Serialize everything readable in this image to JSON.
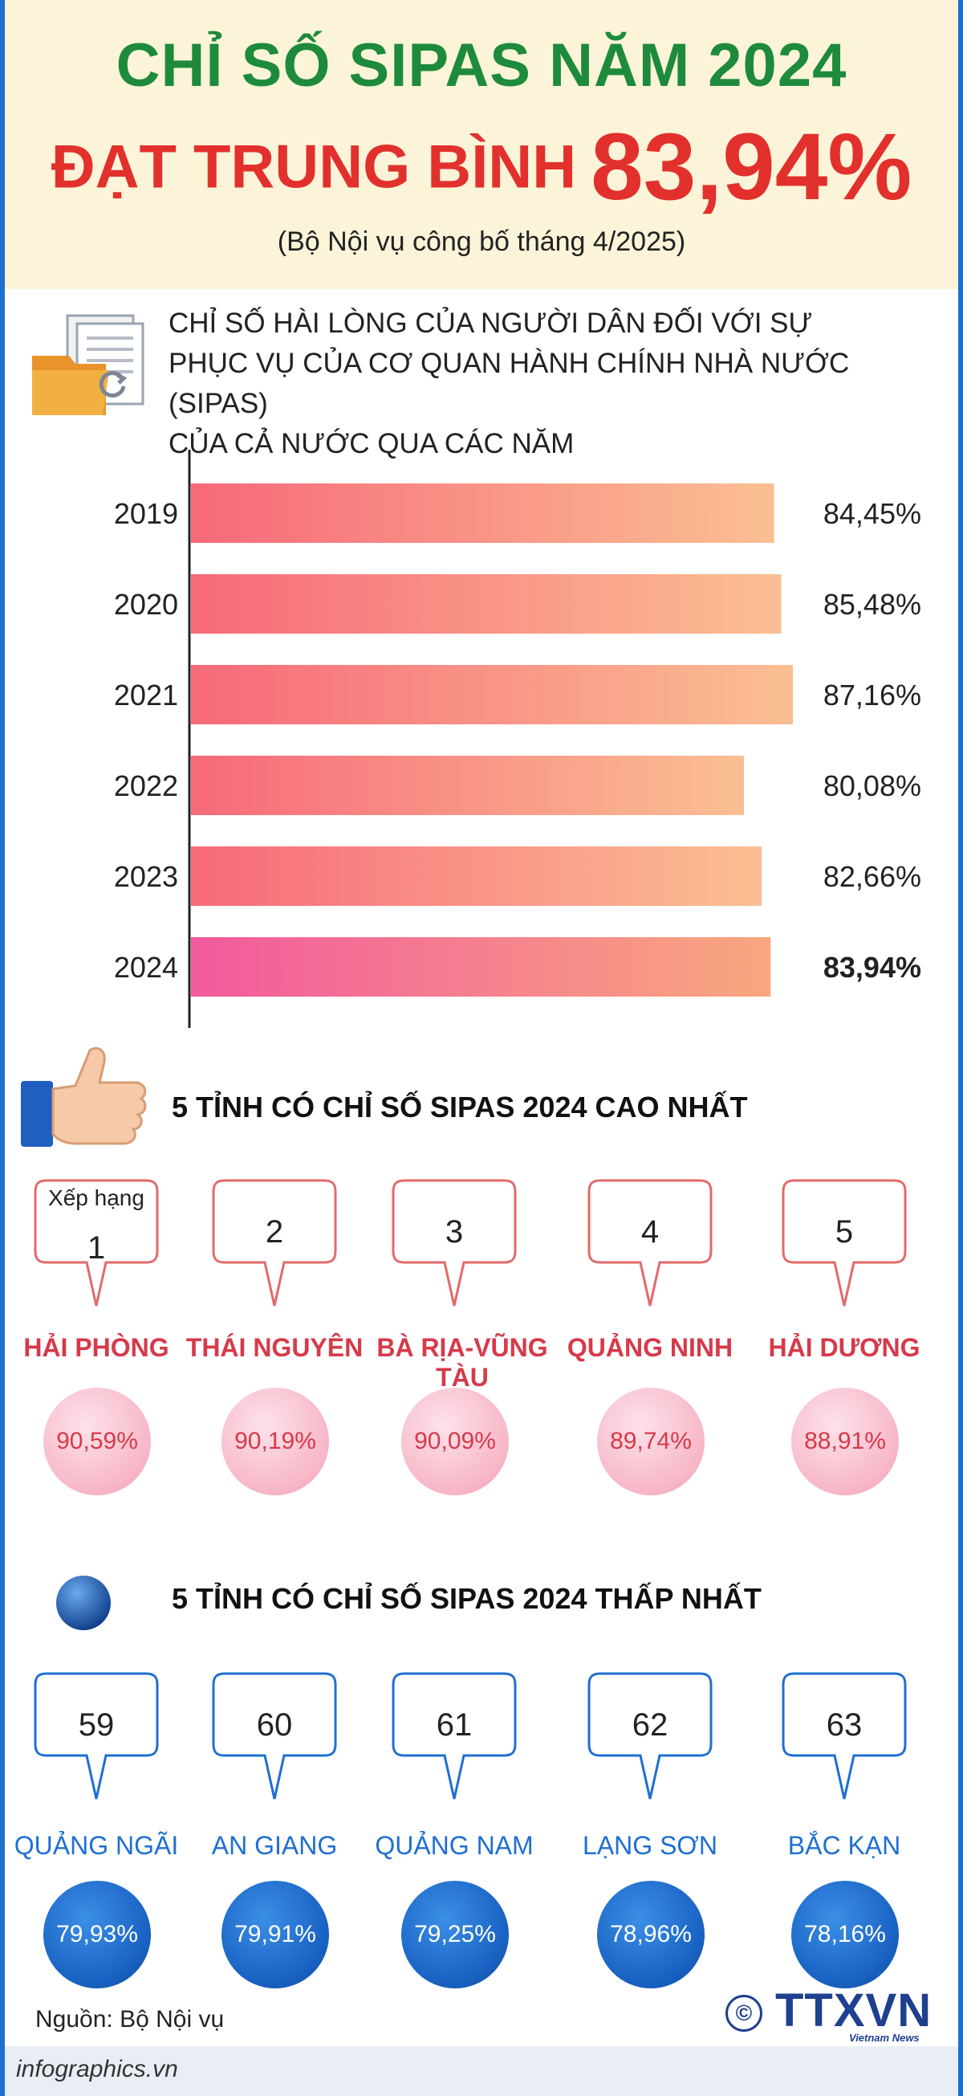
{
  "header": {
    "title_line1": "CHỈ SỐ SIPAS NĂM 2024",
    "title_line2_label": "ĐẠT TRUNG BÌNH",
    "title_line2_value": "83,94%",
    "subtitle": "(Bộ Nội vụ công bố tháng 4/2025)"
  },
  "section_title": {
    "line1": "CHỈ SỐ HÀI LÒNG CỦA NGƯỜI DÂN ĐỐI VỚI SỰ",
    "line2": "PHỤC VỤ CỦA CƠ QUAN HÀNH CHÍNH NHÀ NƯỚC (SIPAS)",
    "line3": "CỦA CẢ NƯỚC QUA CÁC NĂM"
  },
  "chart_data": {
    "type": "bar",
    "orientation": "horizontal",
    "categories": [
      "2019",
      "2020",
      "2021",
      "2022",
      "2023",
      "2024"
    ],
    "values": [
      84.45,
      85.48,
      87.16,
      80.08,
      82.66,
      83.94
    ],
    "value_labels": [
      "84,45%",
      "85,48%",
      "87,16%",
      "80,08%",
      "82,66%",
      "83,94%"
    ],
    "highlight_index": 5,
    "grid": false,
    "colors": {
      "bar_start": "#f7697a",
      "bar_end": "#fbbf93",
      "highlight_start": "#f25a9e",
      "highlight_end": "#f9a77f",
      "axis": "#222222"
    }
  },
  "top_section": {
    "title": "5 TỈNH CÓ CHỈ SỐ SIPAS 2024 CAO NHẤT",
    "rank_label": "Xếp hạng",
    "items": [
      {
        "rank": "1",
        "province": "HẢI PHÒNG",
        "value": "90,59%"
      },
      {
        "rank": "2",
        "province": "THÁI NGUYÊN",
        "value": "90,19%"
      },
      {
        "rank": "3",
        "province": "BÀ RỊA-VŨNG TÀU",
        "value": "90,09%"
      },
      {
        "rank": "4",
        "province": "QUẢNG NINH",
        "value": "89,74%"
      },
      {
        "rank": "5",
        "province": "HẢI DƯƠNG",
        "value": "88,91%"
      }
    ]
  },
  "bottom_section": {
    "title": "5 TỈNH CÓ CHỈ SỐ SIPAS 2024 THẤP NHẤT",
    "items": [
      {
        "rank": "59",
        "province": "QUẢNG NGÃI",
        "value": "79,93%"
      },
      {
        "rank": "60",
        "province": "AN GIANG",
        "value": "79,91%"
      },
      {
        "rank": "61",
        "province": "QUẢNG NAM",
        "value": "79,25%"
      },
      {
        "rank": "62",
        "province": "LẠNG SƠN",
        "value": "78,96%"
      },
      {
        "rank": "63",
        "province": "BẮC KẠN",
        "value": "78,16%"
      }
    ]
  },
  "footer": {
    "source": "Nguồn: Bộ Nội vụ",
    "site": "infographics.vn",
    "copyright": "©",
    "logo": "TTXVN",
    "logo_sub": "Vietnam News Agency"
  },
  "icons": [
    "document-folder-icon",
    "thumbs-up-icon",
    "blue-ball-icon"
  ]
}
